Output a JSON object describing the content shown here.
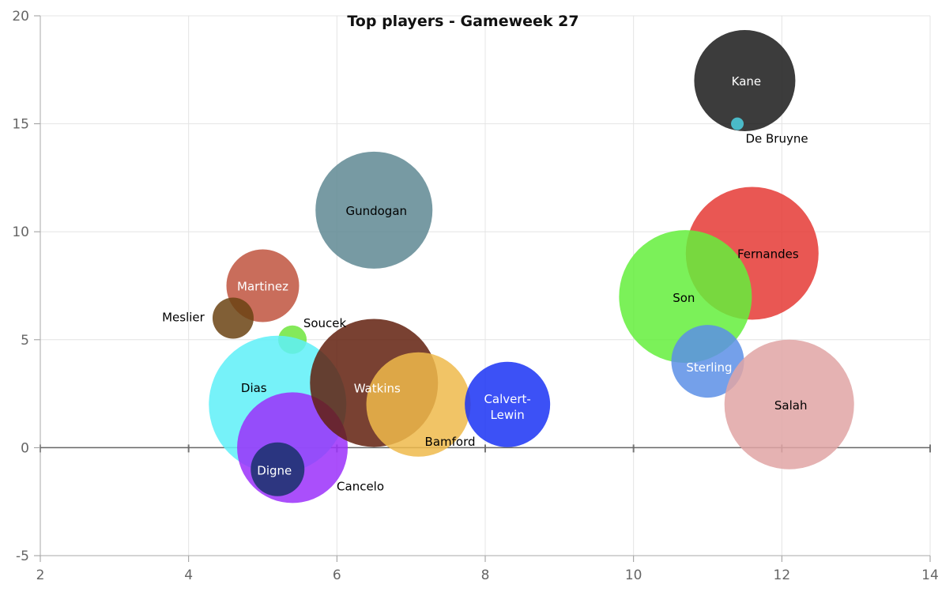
{
  "chart_data": {
    "type": "bubble",
    "title": "Top players - Gameweek 27",
    "xlabel": "",
    "ylabel": "",
    "xlim": [
      2,
      14
    ],
    "ylim": [
      -5,
      20
    ],
    "x_ticks": [
      2,
      4,
      6,
      8,
      10,
      12,
      14
    ],
    "y_ticks": [
      -5,
      0,
      5,
      10,
      15,
      20
    ],
    "grid": true,
    "legend": "none",
    "points": [
      {
        "label": "Kane",
        "x": 11.5,
        "y": 17,
        "r": 64,
        "color": "#1a1a1a",
        "label_color": "#ffffff"
      },
      {
        "label": "De Bruyne",
        "x": 11.4,
        "y": 15,
        "r": 8,
        "color": "#4dd0e1",
        "label_color": "#000000"
      },
      {
        "label": "Fernandes",
        "x": 11.6,
        "y": 9,
        "r": 84,
        "color": "#e53935",
        "label_color": "#000000"
      },
      {
        "label": "Son",
        "x": 10.7,
        "y": 7,
        "r": 84,
        "color": "#64ee3c",
        "label_color": "#000000"
      },
      {
        "label": "Sterling",
        "x": 11,
        "y": 4,
        "r": 46,
        "color": "#5c8fe6",
        "label_color": "#ffffff"
      },
      {
        "label": "Salah",
        "x": 12.1,
        "y": 2,
        "r": 82,
        "color": "#e0a4a4",
        "label_color": "#000000"
      },
      {
        "label": "Gundogan",
        "x": 6.5,
        "y": 11,
        "r": 74,
        "color": "#5f8893",
        "label_color": "#000000"
      },
      {
        "label": "Martinez",
        "x": 5,
        "y": 7.5,
        "r": 46,
        "color": "#c0533e",
        "label_color": "#ffffff"
      },
      {
        "label": "Meslier",
        "x": 4.6,
        "y": 6,
        "r": 26,
        "color": "#6b4313",
        "label_color": "#000000"
      },
      {
        "label": "Soucek",
        "x": 5.4,
        "y": 5,
        "r": 18,
        "color": "#6ee53d",
        "label_color": "#000000"
      },
      {
        "label": "Dias",
        "x": 5.2,
        "y": 2,
        "r": 87,
        "color": "#5ef0f8",
        "label_color": "#000000"
      },
      {
        "label": "Cancelo",
        "x": 5.4,
        "y": 0,
        "r": 70,
        "color": "#9b30fa",
        "label_color": "#000000"
      },
      {
        "label": "Digne",
        "x": 5.2,
        "y": -1,
        "r": 34,
        "color": "#17316a",
        "label_color": "#ffffff"
      },
      {
        "label": "Watkins",
        "x": 6.5,
        "y": 3,
        "r": 81,
        "color": "#61200e",
        "label_color": "#ffffff"
      },
      {
        "label": "Bamford",
        "x": 7.1,
        "y": 2,
        "r": 66,
        "color": "#eeba4b",
        "label_color": "#000000"
      },
      {
        "label": "Calvert-Lewin",
        "lines": [
          "Calvert-",
          "Lewin"
        ],
        "x": 8.3,
        "y": 2,
        "r": 54,
        "color": "#1a33f5",
        "label_color": "#ffffff"
      }
    ]
  }
}
